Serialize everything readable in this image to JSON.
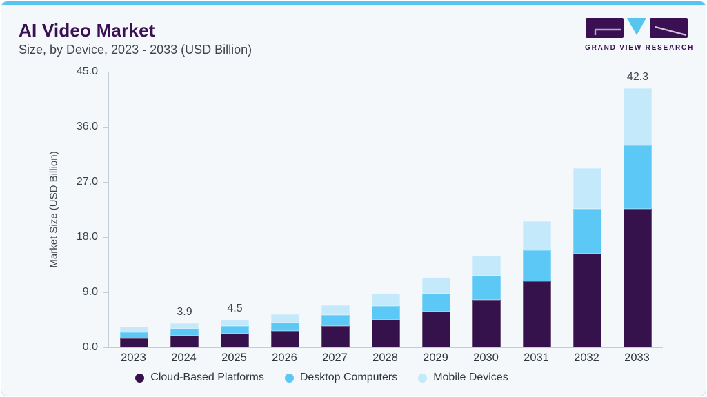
{
  "header": {
    "title": "AI Video Market",
    "subtitle": "Size, by Device, 2023 - 2033 (USD Billion)"
  },
  "logo": {
    "brand_text": "GRAND VIEW RESEARCH",
    "mark_colors": {
      "blocks": "#3a1053",
      "triangle": "#56c5f0",
      "glyph_line": "#b7a6c6"
    }
  },
  "chart_data": {
    "type": "bar",
    "stacked": true,
    "title": "AI Video Market Size, by Device, 2023 - 2033 (USD Billion)",
    "ylabel": "Market Size (USD Billion)",
    "ylim": [
      0,
      45
    ],
    "ytick_labels": [
      "0.0",
      "9.0",
      "18.0",
      "27.0",
      "36.0",
      "45.0"
    ],
    "grid": false,
    "legend_position": "bottom",
    "categories": [
      "2023",
      "2024",
      "2025",
      "2026",
      "2027",
      "2028",
      "2029",
      "2030",
      "2031",
      "2032",
      "2033"
    ],
    "series": [
      {
        "name": "Cloud-Based Platforms",
        "color": "#35124b",
        "values": [
          1.5,
          1.9,
          2.3,
          2.7,
          3.5,
          4.5,
          5.8,
          7.8,
          10.8,
          15.3,
          22.6
        ]
      },
      {
        "name": "Desktop Computers",
        "color": "#5bc8f5",
        "values": [
          1.0,
          1.1,
          1.2,
          1.4,
          1.8,
          2.2,
          3.0,
          3.9,
          5.1,
          7.3,
          10.4
        ]
      },
      {
        "name": "Mobile Devices",
        "color": "#c3e9fa",
        "values": [
          0.9,
          0.9,
          1.0,
          1.3,
          1.6,
          2.1,
          2.6,
          3.3,
          4.7,
          6.6,
          9.3
        ]
      }
    ],
    "bar_total_labels": [
      "",
      "3.9",
      "4.5",
      "",
      "",
      "",
      "",
      "",
      "",
      "",
      "42.3"
    ]
  },
  "colors": {
    "card_background": "#f4f8fb",
    "top_accent": "#57c4ef",
    "title_text": "#3a1053",
    "body_text": "#3f444b",
    "axis_line": "#c3cdd7"
  }
}
